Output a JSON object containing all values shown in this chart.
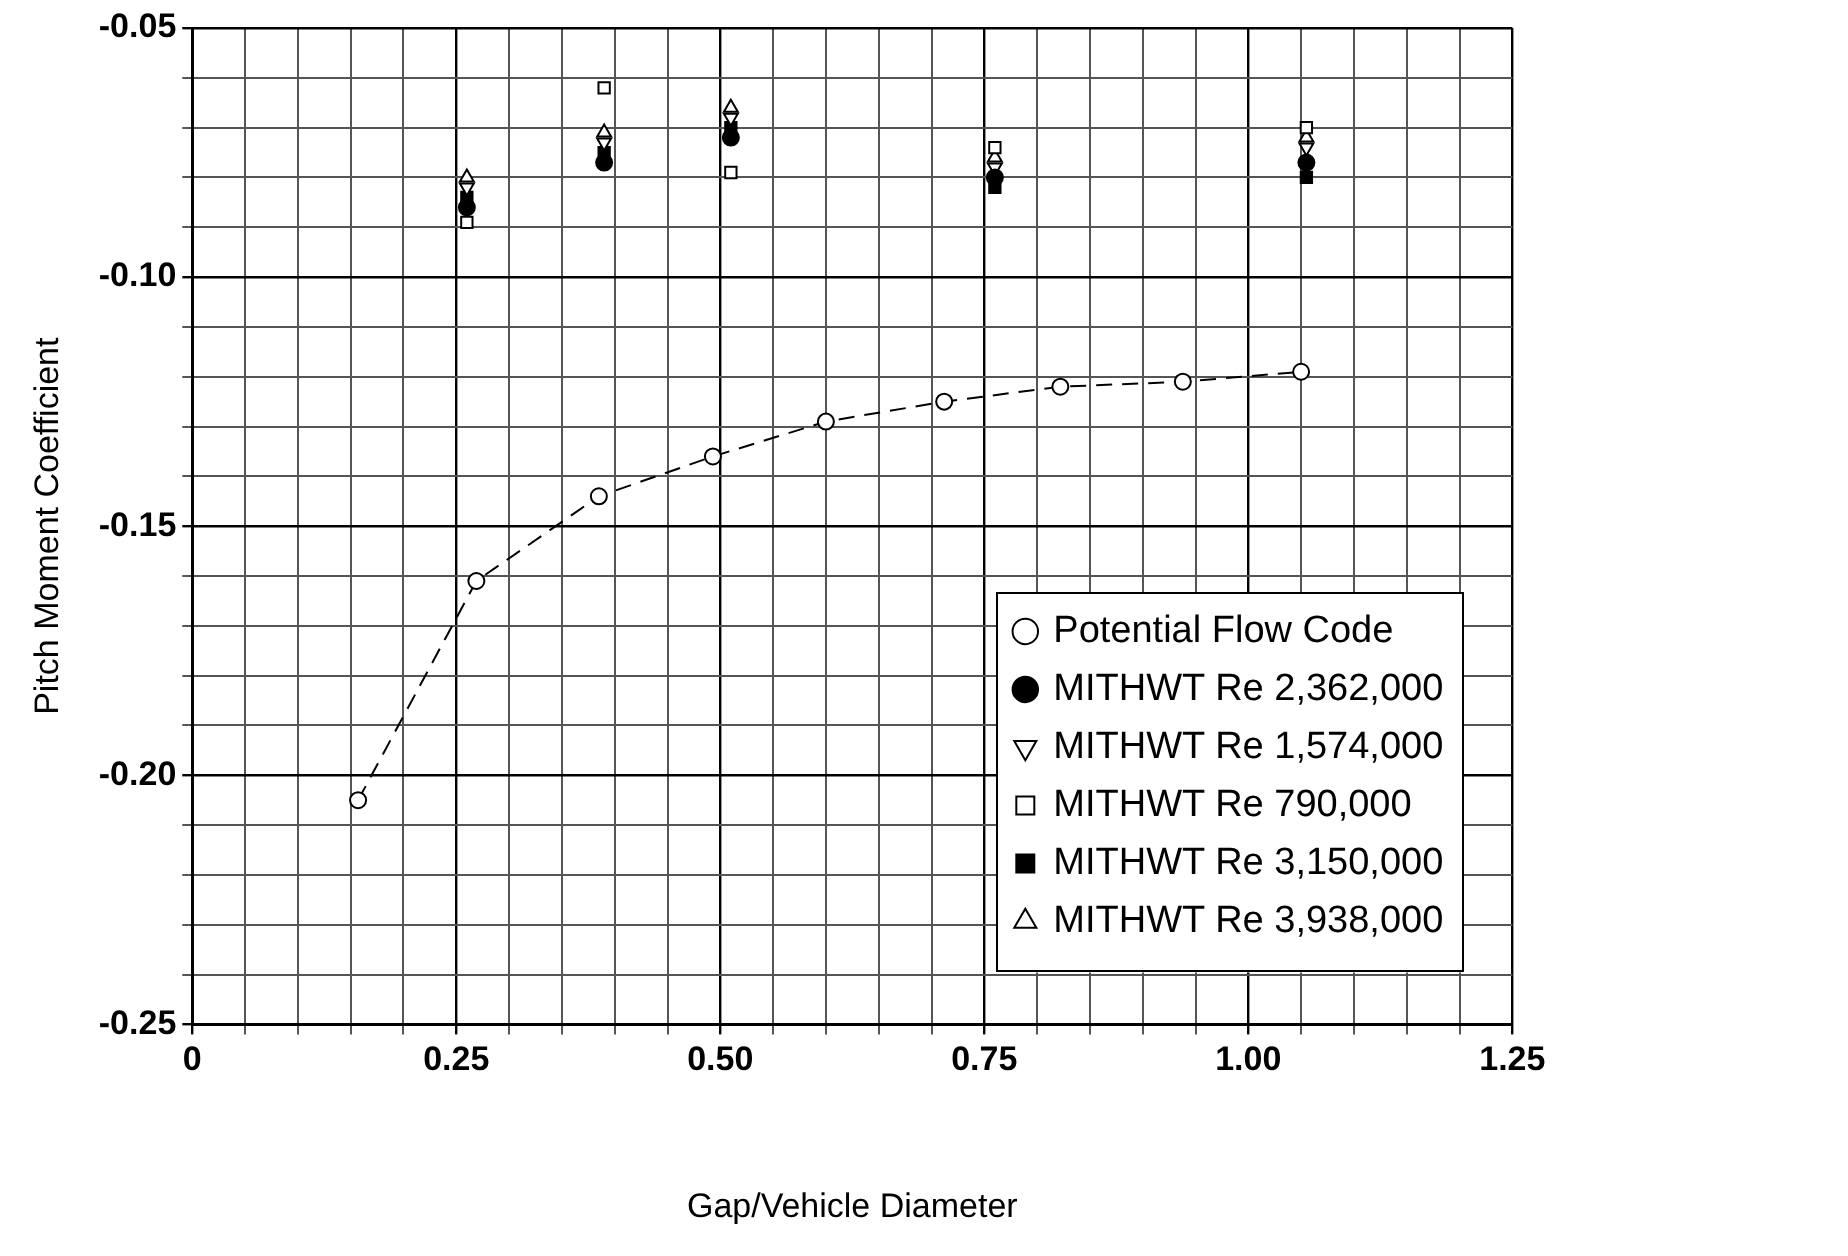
{
  "chart_data": {
    "type": "scatter",
    "xlabel": "Gap/Vehicle Diameter",
    "ylabel": "Pitch Moment Coefficient",
    "xlim": [
      0,
      1.25
    ],
    "ylim": [
      -0.25,
      -0.05
    ],
    "xticks": [
      {
        "value": 0,
        "label": "0"
      },
      {
        "value": 0.05,
        "label": null
      },
      {
        "value": 0.1,
        "label": null
      },
      {
        "value": 0.15,
        "label": null
      },
      {
        "value": 0.2,
        "label": null
      },
      {
        "value": 0.25,
        "label": "0.25"
      },
      {
        "value": 0.3,
        "label": null
      },
      {
        "value": 0.35,
        "label": null
      },
      {
        "value": 0.4,
        "label": null
      },
      {
        "value": 0.45,
        "label": null
      },
      {
        "value": 0.5,
        "label": "0.50"
      },
      {
        "value": 0.55,
        "label": null
      },
      {
        "value": 0.6,
        "label": null
      },
      {
        "value": 0.65,
        "label": null
      },
      {
        "value": 0.7,
        "label": null
      },
      {
        "value": 0.75,
        "label": "0.75"
      },
      {
        "value": 0.8,
        "label": null
      },
      {
        "value": 0.85,
        "label": null
      },
      {
        "value": 0.9,
        "label": null
      },
      {
        "value": 0.95,
        "label": null
      },
      {
        "value": 1,
        "label": "1.00"
      },
      {
        "value": 1.05,
        "label": null
      },
      {
        "value": 1.1,
        "label": null
      },
      {
        "value": 1.15,
        "label": null
      },
      {
        "value": 1.2,
        "label": null
      },
      {
        "value": 1.25,
        "label": "1.25"
      }
    ],
    "yticks": [
      {
        "value": -0.25,
        "label": "-0.25"
      },
      {
        "value": -0.24,
        "label": null
      },
      {
        "value": -0.23,
        "label": null
      },
      {
        "value": -0.22,
        "label": null
      },
      {
        "value": -0.21,
        "label": null
      },
      {
        "value": -0.2,
        "label": "-0.20"
      },
      {
        "value": -0.19,
        "label": null
      },
      {
        "value": -0.18,
        "label": null
      },
      {
        "value": -0.17,
        "label": null
      },
      {
        "value": -0.16,
        "label": null
      },
      {
        "value": -0.15,
        "label": "-0.15"
      },
      {
        "value": -0.14,
        "label": null
      },
      {
        "value": -0.13,
        "label": null
      },
      {
        "value": -0.12,
        "label": null
      },
      {
        "value": -0.11,
        "label": null
      },
      {
        "value": -0.1,
        "label": "-0.10"
      },
      {
        "value": -0.09,
        "label": null
      },
      {
        "value": -0.08,
        "label": null
      },
      {
        "value": -0.07,
        "label": null
      },
      {
        "value": -0.06,
        "label": null
      },
      {
        "value": -0.05,
        "label": "-0.05"
      }
    ],
    "grid": true,
    "legend": "bottom right",
    "series": [
      {
        "name": "Potential Flow Code",
        "type": "line",
        "color": "#000000",
        "marker": "circle",
        "line_style": "dashed",
        "x": [
          0.157,
          0.269,
          0.385,
          0.493,
          0.6,
          0.712,
          0.822,
          0.938,
          1.05
        ],
        "values": [
          -0.205,
          -0.161,
          -0.144,
          -0.136,
          -0.129,
          -0.125,
          -0.122,
          -0.121,
          -0.119
        ]
      },
      {
        "name": "MITHWT Re 2,362,000",
        "type": "scatter",
        "color": "#000000",
        "marker": "circle-filled",
        "x": [
          0.26,
          0.39,
          0.51,
          0.76,
          1.055
        ],
        "values": [
          -0.086,
          -0.077,
          -0.072,
          -0.08,
          -0.077
        ]
      },
      {
        "name": "MITHWT Re 1,574,000",
        "type": "scatter",
        "color": "#000000",
        "marker": "triangle-down",
        "x": [
          0.26,
          0.39,
          0.51,
          0.76,
          1.055
        ],
        "values": [
          -0.082,
          -0.073,
          -0.068,
          -0.078,
          -0.074
        ]
      },
      {
        "name": "MITHWT Re 790,000",
        "type": "scatter",
        "color": "#000000",
        "marker": "square",
        "x": [
          0.26,
          0.39,
          0.51,
          0.76,
          1.055
        ],
        "values": [
          -0.089,
          -0.062,
          -0.079,
          -0.074,
          -0.07
        ]
      },
      {
        "name": "MITHWT Re 3,150,000",
        "type": "scatter",
        "color": "#000000",
        "marker": "square-filled",
        "x": [
          0.26,
          0.39,
          0.51,
          0.76,
          1.055
        ],
        "values": [
          -0.084,
          -0.075,
          -0.07,
          -0.082,
          -0.08
        ]
      },
      {
        "name": "MITHWT Re 3,938,000",
        "type": "scatter",
        "color": "#000000",
        "marker": "triangle",
        "x": [
          0.26,
          0.39,
          0.51,
          0.76,
          1.055
        ],
        "values": [
          -0.08,
          -0.071,
          -0.066,
          -0.076,
          -0.072
        ]
      }
    ]
  }
}
